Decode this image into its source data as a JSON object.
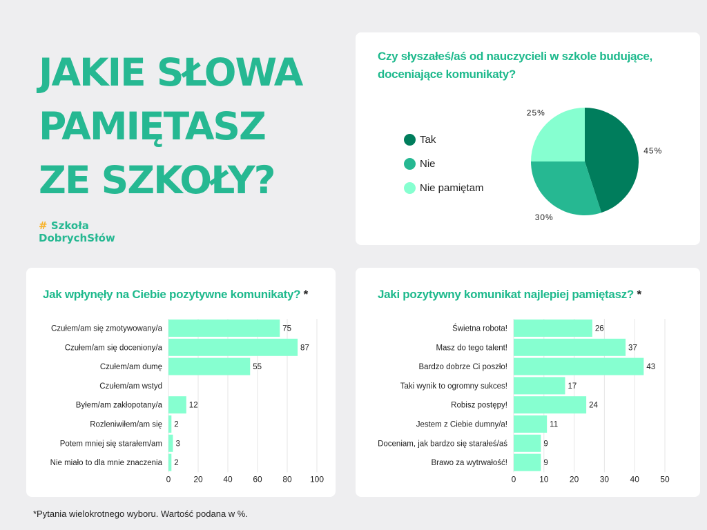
{
  "headline": [
    "JAKIE SŁOWA",
    "PAMIĘTASZ",
    "ZE SZKOŁY?"
  ],
  "logo": {
    "hash": "#",
    "line1": "Szkoła",
    "line2": "DobrychSłów"
  },
  "colors": {
    "accent": "#26b892",
    "title": "#1db98c",
    "bar": "#86ffd0",
    "logo_hash": "#f7b32b"
  },
  "footnote": "*Pytania wielokrotnego wyboru. Wartość podana w %.",
  "chart_data": [
    {
      "type": "pie",
      "title": "Czy słyszałeś/aś od nauczycieli w szkole budujące, doceniające komunikaty?",
      "legend_position": "left",
      "slices": [
        {
          "label": "Tak",
          "value": 45,
          "display": "45%",
          "color": "#007d5c"
        },
        {
          "label": "Nie",
          "value": 30,
          "display": "30%",
          "color": "#26b892"
        },
        {
          "label": "Nie pamiętam",
          "value": 25,
          "display": "25%",
          "color": "#86ffd0"
        }
      ]
    },
    {
      "type": "bar",
      "orientation": "horizontal",
      "title": "Jak wpłynęły na Ciebie pozytywne komunikaty?",
      "title_mark": "*",
      "categories": [
        "Czułem/am się zmotywowany/a",
        "Czułem/am się doceniony/a",
        "Czułem/am dumę",
        "Czułem/am wstyd",
        "Byłem/am zakłopotany/a",
        "Rozleniwiłem/am się",
        "Potem mniej się starałem/am",
        "Nie miało to dla mnie znaczenia"
      ],
      "values": [
        75,
        87,
        55,
        0,
        12,
        2,
        3,
        2
      ],
      "value_labels": [
        "75",
        "87",
        "55",
        "",
        "12",
        "2",
        "3",
        "2"
      ],
      "xlim": [
        0,
        100
      ],
      "xticks": [
        "0",
        "20",
        "40",
        "60",
        "80",
        "100"
      ],
      "grid": true
    },
    {
      "type": "bar",
      "orientation": "horizontal",
      "title": "Jaki pozytywny komunikat najlepiej pamiętasz?",
      "title_mark": "*",
      "categories": [
        "Świetna robota!",
        "Masz do tego talent!",
        "Bardzo dobrze Ci poszło!",
        "Taki wynik to ogromny sukces!",
        "Robisz postępy!",
        "Jestem z Ciebie dumny/a!",
        "Doceniam, jak bardzo się starałeś/aś",
        "Brawo za wytrwałość!"
      ],
      "values": [
        26,
        37,
        43,
        17,
        24,
        11,
        9,
        9
      ],
      "value_labels": [
        "26",
        "37",
        "43",
        "17",
        "24",
        "11",
        "9",
        "9"
      ],
      "xlim": [
        0,
        50
      ],
      "xticks": [
        "0",
        "10",
        "20",
        "30",
        "40",
        "50"
      ],
      "grid": true
    }
  ]
}
